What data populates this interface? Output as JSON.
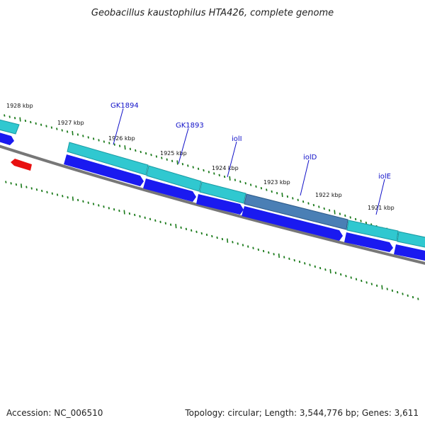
{
  "title": "Geobacillus kaustophilus HTA426, complete genome",
  "footer": {
    "accession": "Accession: NC_006510",
    "summary": "Topology: circular; Length: 3,544,776 bp; Genes: 3,611"
  },
  "tick_labels": [
    "1928 kbp",
    "1927 kbp",
    "1926 kbp",
    "1925 kbp",
    "1924 kbp",
    "1923 kbp",
    "1922 kbp",
    "1921 kbp"
  ],
  "genes": [
    {
      "label": "GK1894"
    },
    {
      "label": "GK1893"
    },
    {
      "label": "iolI"
    },
    {
      "label": "iolD"
    },
    {
      "label": "iolE"
    }
  ],
  "colors": {
    "backbone": "#777777",
    "tick": "#1a7a1a",
    "cds": "#1a1af0",
    "gene": "#30c8d0",
    "highlight": "#4a7fb5",
    "rna": "#e81010",
    "label": "#1010c8"
  }
}
